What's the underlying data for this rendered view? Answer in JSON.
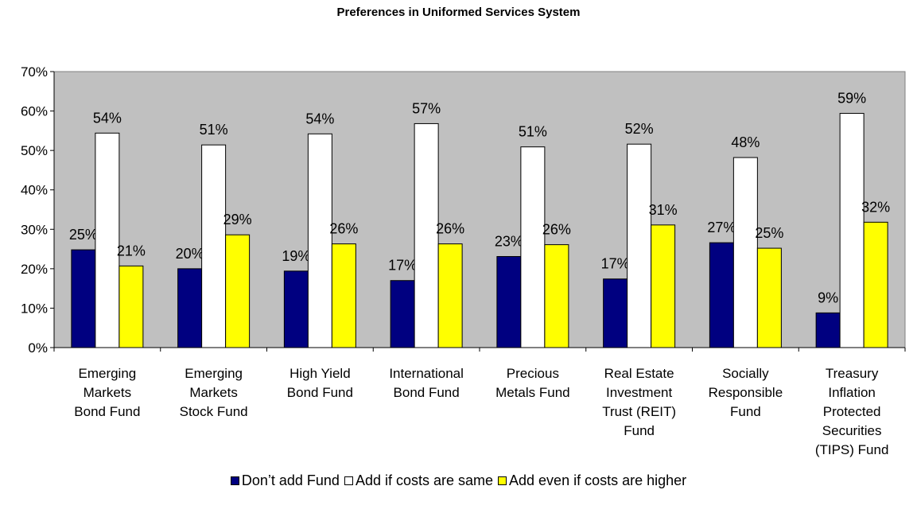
{
  "chart_data": {
    "type": "bar",
    "title": "Preferences in Uniformed Services System",
    "xlabel": "",
    "ylabel": "",
    "ylim": [
      0,
      70
    ],
    "yticks": [
      0,
      10,
      20,
      30,
      40,
      50,
      60,
      70
    ],
    "ytick_labels": [
      "0%",
      "10%",
      "20%",
      "30%",
      "40%",
      "50%",
      "60%",
      "70%"
    ],
    "grid": false,
    "plot_background": "#c0c0c0",
    "legend_position": "bottom",
    "categories": [
      [
        "Emerging",
        "Markets",
        "Bond Fund"
      ],
      [
        "Emerging",
        "Markets",
        "Stock Fund"
      ],
      [
        "High Yield",
        "Bond Fund"
      ],
      [
        "International",
        "Bond Fund"
      ],
      [
        "Precious",
        "Metals Fund"
      ],
      [
        "Real Estate",
        "Investment",
        "Trust (REIT)",
        "Fund"
      ],
      [
        "Socially",
        "Responsible",
        "Fund"
      ],
      [
        "Treasury",
        "Inflation",
        "Protected",
        "Securities",
        "(TIPS) Fund"
      ]
    ],
    "series": [
      {
        "name": "Don’t add Fund",
        "color": "#000080",
        "values": [
          24.8,
          20.0,
          19.4,
          17.0,
          23.1,
          17.4,
          26.6,
          8.8
        ],
        "labels": [
          "25%",
          "20%",
          "19%",
          "17%",
          "23%",
          "17%",
          "27%",
          "9%"
        ]
      },
      {
        "name": "Add if costs are same",
        "color": "#ffffff",
        "values": [
          54.4,
          51.4,
          54.2,
          56.8,
          50.9,
          51.6,
          48.2,
          59.4
        ],
        "labels": [
          "54%",
          "51%",
          "54%",
          "57%",
          "51%",
          "52%",
          "48%",
          "59%"
        ]
      },
      {
        "name": "Add even if costs are higher",
        "color": "#ffff00",
        "values": [
          20.7,
          28.6,
          26.3,
          26.3,
          26.1,
          31.1,
          25.2,
          31.8
        ],
        "labels": [
          "21%",
          "29%",
          "26%",
          "26%",
          "26%",
          "31%",
          "25%",
          "32%"
        ]
      }
    ]
  }
}
